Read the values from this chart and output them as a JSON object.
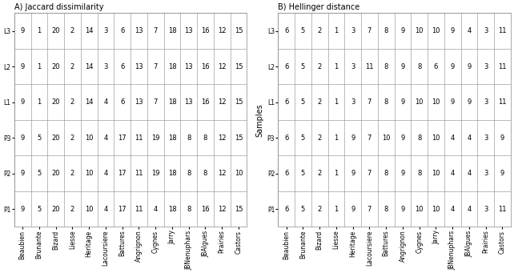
{
  "title_A": "A) Jaccard dissimilarity",
  "title_B": "B) Hellinger distance",
  "ylabel_B": "Samples",
  "rows": [
    "P1",
    "P2",
    "P3",
    "L1",
    "L2",
    "L3"
  ],
  "cols": [
    "Beaubien",
    "Brunante",
    "Bizard",
    "Liesse",
    "Heritage",
    "Lacoursiere",
    "Battures",
    "Angrignon",
    "Cygnes",
    "Jarry",
    "JBNenuphars",
    "JBAlgues",
    "Prairies",
    "Castors"
  ],
  "data_A": {
    "P1": [
      9,
      5,
      20,
      2,
      10,
      4,
      17,
      11,
      4,
      18,
      8,
      16,
      12,
      15
    ],
    "P2": [
      9,
      5,
      20,
      2,
      10,
      4,
      17,
      11,
      19,
      18,
      8,
      8,
      12,
      10
    ],
    "P3": [
      9,
      5,
      20,
      2,
      10,
      4,
      17,
      11,
      19,
      18,
      8,
      8,
      12,
      15
    ],
    "L1": [
      9,
      1,
      20,
      2,
      14,
      4,
      6,
      13,
      7,
      18,
      13,
      16,
      12,
      15
    ],
    "L2": [
      9,
      1,
      20,
      2,
      14,
      3,
      6,
      13,
      7,
      18,
      13,
      16,
      12,
      15
    ],
    "L3": [
      9,
      1,
      20,
      2,
      14,
      3,
      6,
      13,
      7,
      18,
      13,
      16,
      12,
      15
    ]
  },
  "data_B": {
    "P1": [
      6,
      5,
      2,
      1,
      9,
      7,
      8,
      9,
      10,
      10,
      4,
      4,
      3,
      11
    ],
    "P2": [
      6,
      5,
      2,
      1,
      9,
      7,
      8,
      9,
      8,
      10,
      4,
      4,
      3,
      9
    ],
    "P3": [
      6,
      5,
      2,
      1,
      9,
      7,
      10,
      9,
      8,
      10,
      4,
      4,
      3,
      9
    ],
    "L1": [
      6,
      5,
      2,
      1,
      3,
      7,
      8,
      9,
      10,
      10,
      9,
      9,
      3,
      11
    ],
    "L2": [
      6,
      5,
      2,
      1,
      3,
      11,
      8,
      9,
      8,
      6,
      9,
      9,
      3,
      11
    ],
    "L3": [
      6,
      5,
      2,
      1,
      3,
      7,
      8,
      9,
      10,
      10,
      9,
      4,
      3,
      11
    ]
  },
  "bg_color": "#ffffff",
  "border_color": "#888888",
  "fontsize_title": 7,
  "fontsize_tick": 5.5,
  "fontsize_cell": 6,
  "fontsize_ylabel": 7
}
